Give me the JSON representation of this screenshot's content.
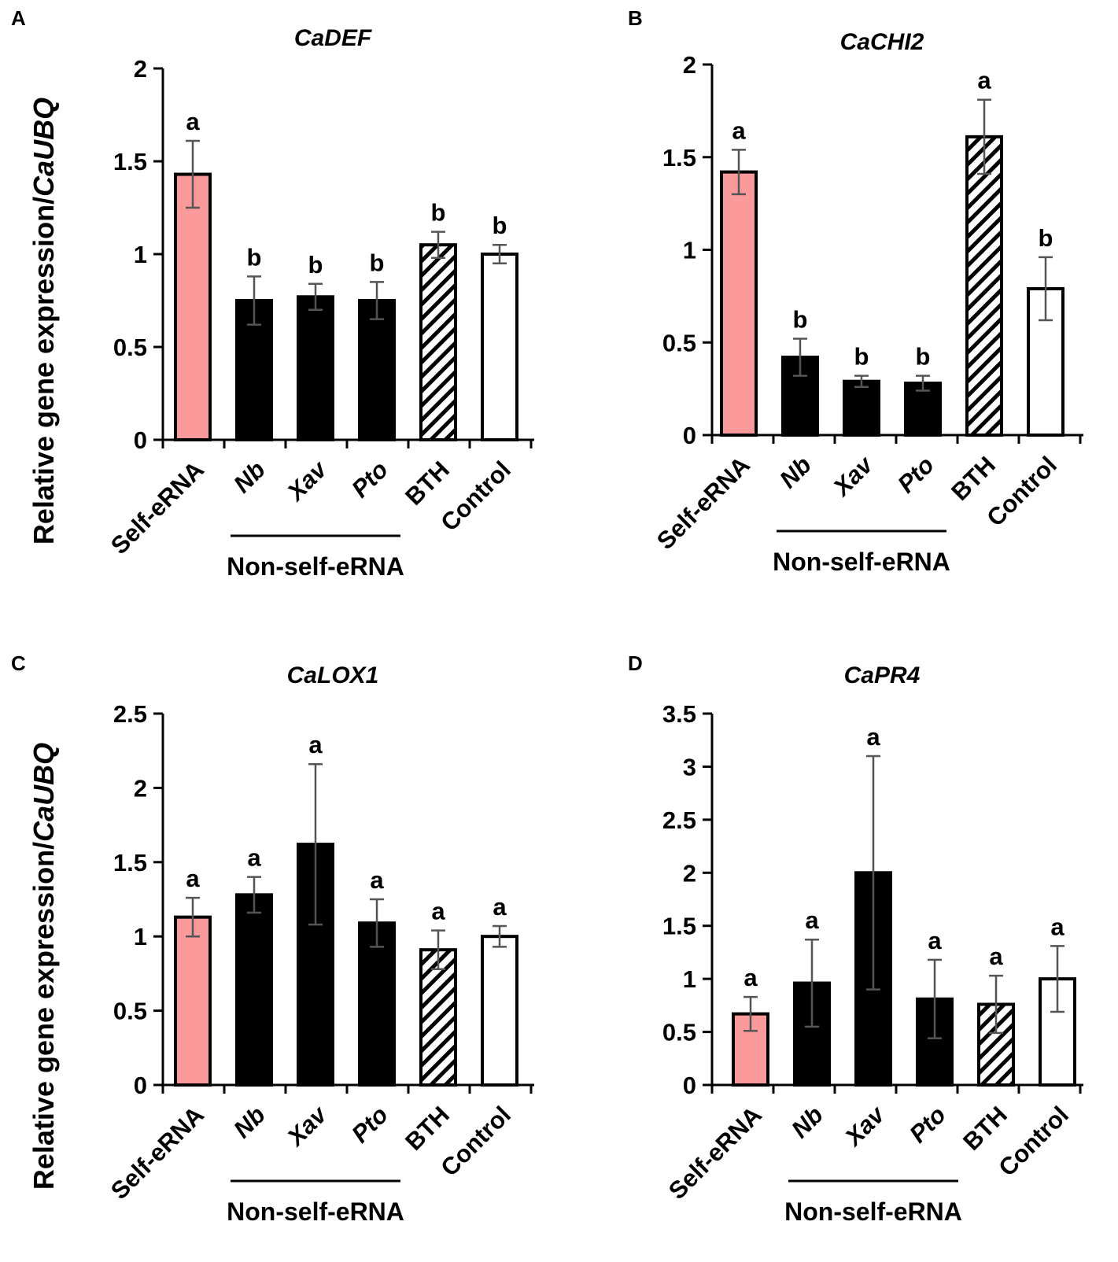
{
  "figure": {
    "ylabel_prefix": "Relative gene expression/",
    "ylabel_italic": "CaUBQ",
    "group_label": "Non-self-eRNA"
  },
  "colors": {
    "self": "#FA9A9A",
    "nonself": "#000000",
    "bth_hatch": "#000000",
    "control": "#FFFFFF",
    "error_bar": "#555555",
    "axis": "#000000"
  },
  "chart_data": [
    {
      "panel": "A",
      "type": "bar",
      "title": "CaDEF",
      "categories": [
        "Self-eRNA",
        "Nb",
        "Xav",
        "Pto",
        "BTH",
        "Control"
      ],
      "italic_categories": [
        false,
        true,
        true,
        true,
        false,
        false
      ],
      "values": [
        1.43,
        0.75,
        0.77,
        0.75,
        1.05,
        1.0
      ],
      "errors": [
        0.18,
        0.13,
        0.07,
        0.1,
        0.07,
        0.05
      ],
      "letters": [
        "a",
        "b",
        "b",
        "b",
        "b",
        "b"
      ],
      "ylim": [
        0,
        2
      ],
      "yticks": [
        0,
        0.5,
        1,
        1.5,
        2
      ],
      "ytick_labels": [
        "0",
        "0.5",
        "1",
        "1.5",
        "2"
      ],
      "show_ylabel": true
    },
    {
      "panel": "B",
      "type": "bar",
      "title": "CaCHI2",
      "categories": [
        "Self-eRNA",
        "Nb",
        "Xav",
        "Pto",
        "BTH",
        "Control"
      ],
      "italic_categories": [
        false,
        true,
        true,
        true,
        false,
        false
      ],
      "values": [
        1.42,
        0.42,
        0.29,
        0.28,
        1.61,
        0.79
      ],
      "errors": [
        0.12,
        0.1,
        0.03,
        0.04,
        0.2,
        0.17
      ],
      "letters": [
        "a",
        "b",
        "b",
        "b",
        "a",
        "b"
      ],
      "ylim": [
        0,
        2
      ],
      "yticks": [
        0,
        0.5,
        1,
        1.5,
        2
      ],
      "ytick_labels": [
        "0",
        "0.5",
        "1",
        "1.5",
        "2"
      ],
      "show_ylabel": false
    },
    {
      "panel": "C",
      "type": "bar",
      "title": "CaLOX1",
      "categories": [
        "Self-eRNA",
        "Nb",
        "Xav",
        "Pto",
        "BTH",
        "Control"
      ],
      "italic_categories": [
        false,
        true,
        true,
        true,
        false,
        false
      ],
      "values": [
        1.13,
        1.28,
        1.62,
        1.09,
        0.91,
        1.0
      ],
      "errors": [
        0.13,
        0.12,
        0.54,
        0.16,
        0.13,
        0.07
      ],
      "letters": [
        "a",
        "a",
        "a",
        "a",
        "a",
        "a"
      ],
      "ylim": [
        0,
        2.5
      ],
      "yticks": [
        0,
        0.5,
        1,
        1.5,
        2,
        2.5
      ],
      "ytick_labels": [
        "0",
        "0.5",
        "1",
        "1.5",
        "2",
        "2.5"
      ],
      "show_ylabel": true
    },
    {
      "panel": "D",
      "type": "bar",
      "title": "CaPR4",
      "categories": [
        "Self-eRNA",
        "Nb",
        "Xav",
        "Pto",
        "BTH",
        "Control"
      ],
      "italic_categories": [
        false,
        true,
        true,
        true,
        false,
        false
      ],
      "values": [
        0.67,
        0.96,
        2.0,
        0.81,
        0.76,
        1.0
      ],
      "errors": [
        0.16,
        0.41,
        1.1,
        0.37,
        0.27,
        0.31
      ],
      "letters": [
        "a",
        "a",
        "a",
        "a",
        "a",
        "a"
      ],
      "ylim": [
        0,
        3.5
      ],
      "yticks": [
        0,
        0.5,
        1,
        1.5,
        2,
        2.5,
        3,
        3.5
      ],
      "ytick_labels": [
        "0",
        "0.5",
        "1",
        "1.5",
        "2",
        "2.5",
        "3",
        "3.5"
      ],
      "show_ylabel": false
    }
  ]
}
